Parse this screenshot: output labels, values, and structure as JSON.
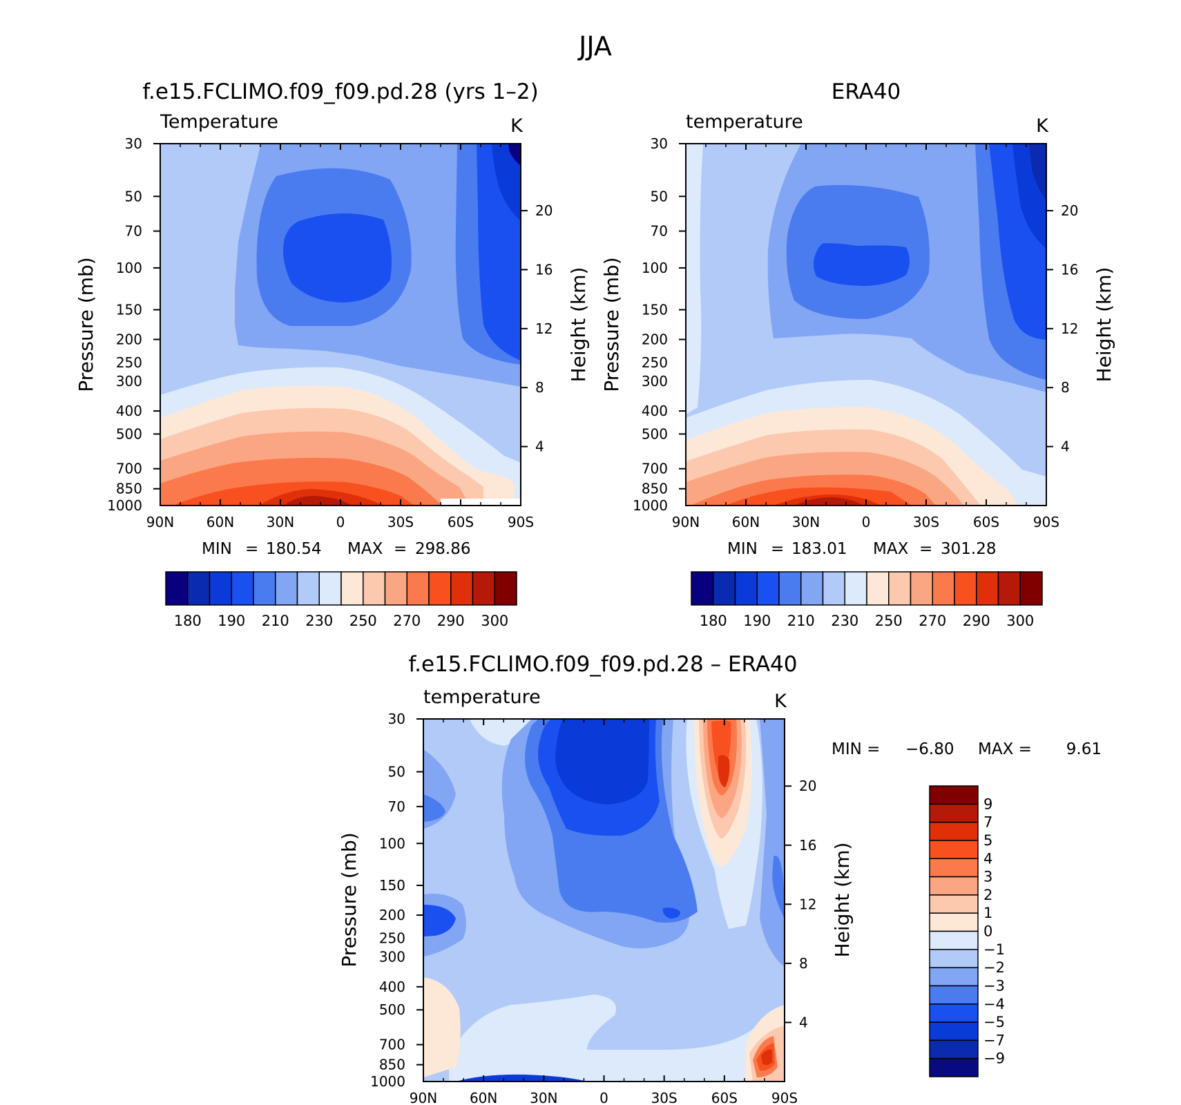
{
  "main_title": "JJA",
  "palette": {
    "temperature": [
      "#08007f",
      "#0a2ab0",
      "#0a3ad8",
      "#1a50f0",
      "#4a7cf0",
      "#82a6f4",
      "#b2caf8",
      "#dceafc",
      "#fde8d8",
      "#fcc8ae",
      "#fba683",
      "#fa7a4e",
      "#f95020",
      "#e0300a",
      "#b51a08",
      "#800000"
    ],
    "difference": [
      "#0a0a80",
      "#0a2ab0",
      "#0a3ad8",
      "#1a50f0",
      "#4a7cf0",
      "#82a6f4",
      "#b2caf8",
      "#dceafc",
      "#fde8d8",
      "#fcc8ae",
      "#fba683",
      "#fa7a4e",
      "#f95020",
      "#e0300a",
      "#b51a08",
      "#800000"
    ]
  },
  "chart_data": [
    {
      "type": "contour",
      "id": "model",
      "title": "f.e15.FCLIMO.f09_f09.pd.28 (yrs 1–2)",
      "left_label": "Temperature",
      "units": "K",
      "ylabel": "Pressure (mb)",
      "ylabel_right": "Height (km)",
      "x_ticks": [
        "90N",
        "60N",
        "30N",
        "0",
        "30S",
        "60S",
        "90S"
      ],
      "y_ticks": [
        "30",
        "50",
        "70",
        "100",
        "150",
        "200",
        "250",
        "300",
        "400",
        "500",
        "700",
        "850",
        "1000"
      ],
      "height_ticks": [
        "20",
        "16",
        "12",
        "8",
        "4"
      ],
      "min_label": "MIN",
      "min": "180.54",
      "max_label": "MAX",
      "max": "298.86",
      "colorbar_labels": [
        "180",
        "190",
        "210",
        "230",
        "250",
        "270",
        "290",
        "300"
      ],
      "levels": [
        180,
        190,
        200,
        210,
        220,
        230,
        240,
        250,
        260,
        270,
        280,
        290,
        295,
        300,
        305
      ]
    },
    {
      "type": "contour",
      "id": "era40",
      "title": "ERA40",
      "left_label": "temperature",
      "units": "K",
      "ylabel": "Pressure (mb)",
      "ylabel_right": "Height (km)",
      "x_ticks": [
        "90N",
        "60N",
        "30N",
        "0",
        "30S",
        "60S",
        "90S"
      ],
      "y_ticks": [
        "30",
        "50",
        "70",
        "100",
        "150",
        "200",
        "250",
        "300",
        "400",
        "500",
        "700",
        "850",
        "1000"
      ],
      "height_ticks": [
        "20",
        "16",
        "12",
        "8",
        "4"
      ],
      "min_label": "MIN",
      "min": "183.01",
      "max_label": "MAX",
      "max": "301.28",
      "colorbar_labels": [
        "180",
        "190",
        "210",
        "230",
        "250",
        "270",
        "290",
        "300"
      ],
      "levels": [
        180,
        190,
        200,
        210,
        220,
        230,
        240,
        250,
        260,
        270,
        280,
        290,
        295,
        300,
        305
      ]
    },
    {
      "type": "contour",
      "id": "diff",
      "title": "f.e15.FCLIMO.f09_f09.pd.28 – ERA40",
      "left_label": "temperature",
      "units": "K",
      "ylabel": "Pressure (mb)",
      "ylabel_right": "Height (km)",
      "x_ticks": [
        "90N",
        "60N",
        "30N",
        "0",
        "30S",
        "60S",
        "90S"
      ],
      "y_ticks": [
        "30",
        "50",
        "70",
        "100",
        "150",
        "200",
        "250",
        "300",
        "400",
        "500",
        "700",
        "850",
        "1000"
      ],
      "height_ticks": [
        "20",
        "16",
        "12",
        "8",
        "4"
      ],
      "min_label": "MIN =",
      "min": "−6.80",
      "max_label": "MAX =",
      "max": "9.61",
      "colorbar_labels": [
        "9",
        "7",
        "5",
        "4",
        "3",
        "2",
        "1",
        "0",
        "−1",
        "−2",
        "−3",
        "−4",
        "−5",
        "−7",
        "−9"
      ],
      "levels": [
        -9,
        -7,
        -5,
        -4,
        -3,
        -2,
        -1,
        0,
        1,
        2,
        3,
        4,
        5,
        7,
        9
      ]
    }
  ]
}
